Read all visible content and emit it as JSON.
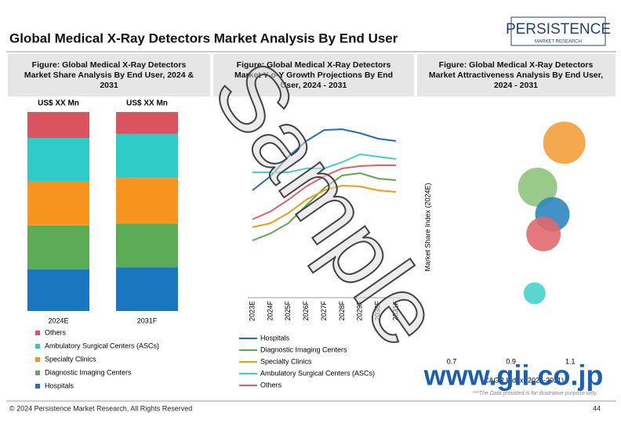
{
  "header": {
    "title": "Global Medical X-Ray Detectors Market Analysis By End User",
    "logo": "PERSISTENCE",
    "logo_sub": "MARKET RESEARCH"
  },
  "footer": {
    "copyright": "© 2024 Persistence Market Research, All Rights Reserved",
    "page": "44"
  },
  "watermark": "Sample",
  "site": "www.gii.co.jp",
  "note": "***The Data provided is for illustrative purpose only.",
  "chart_data": [
    {
      "type": "stacked_bar",
      "title": "Figure: Global Medical X-Ray Detectors Market Share Analysis By End User, 2024 & 2031",
      "categories": [
        "2024E",
        "2031F"
      ],
      "bar_labels": [
        "US$ XX Mn",
        "US$ XX Mn"
      ],
      "series": [
        {
          "name": "Hospitals",
          "color": "#1a77bf",
          "values": [
            21,
            22
          ]
        },
        {
          "name": "Diagnostic Imaging Centers",
          "color": "#5cab56",
          "values": [
            22,
            22
          ]
        },
        {
          "name": "Specialty Clinics",
          "color": "#f7941d",
          "values": [
            22,
            23
          ]
        },
        {
          "name": "Ambulatory Surgical Centers (ASCs)",
          "color": "#2ecbc8",
          "values": [
            22,
            22
          ]
        },
        {
          "name": "Others",
          "color": "#d9545e",
          "values": [
            13,
            11
          ]
        }
      ]
    },
    {
      "type": "line",
      "title": "Figure: Global Medical X-Ray Detectors Market Y-o-Y Growth Projections By End User, 2024 - 2031",
      "categories": [
        "2023E",
        "2024F",
        "2025F",
        "2026F",
        "2027F",
        "2028F",
        "2029F",
        "2030F",
        "2031F"
      ],
      "ylim": [
        0,
        230
      ],
      "series": [
        {
          "name": "Hospitals",
          "color": "#1f6fb2",
          "values": [
            137,
            155,
            180,
            200,
            214,
            215,
            210,
            203,
            200
          ]
        },
        {
          "name": "Diagnostic Imaging Centers",
          "color": "#5fa84f",
          "values": [
            73,
            82,
            95,
            118,
            140,
            156,
            159,
            152,
            150
          ]
        },
        {
          "name": "Specialty Clinics",
          "color": "#f39c12",
          "values": [
            90,
            95,
            108,
            125,
            137,
            143,
            142,
            137,
            135
          ]
        },
        {
          "name": "Ambulatory Surgical Centers (ASCs)",
          "color": "#40d0d0",
          "values": [
            160,
            160,
            160,
            165,
            165,
            173,
            183,
            180,
            177
          ]
        },
        {
          "name": "Others",
          "color": "#e0606a",
          "values": [
            100,
            110,
            125,
            142,
            155,
            165,
            168,
            169,
            169
          ]
        }
      ]
    },
    {
      "type": "bubble",
      "title": "Figure: Global Medical X-Ray Detectors Market Attractiveness Analysis By End User, 2024 - 2031",
      "x_label": "CAGR Index (2024-2031)",
      "y_label": "Market Share Index (2024E)",
      "xlim": [
        0.7,
        1.2
      ],
      "xticks": [
        0.7,
        0.9,
        1.1
      ],
      "ylim": [
        0,
        100
      ],
      "x": [
        1.08,
        0.99,
        1.04,
        1.01,
        0.98
      ],
      "values": [
        85,
        67,
        56,
        48,
        24
      ],
      "sizes": [
        27,
        25,
        22,
        22,
        14
      ],
      "colors": [
        "#f4a03c",
        "#8fc47d",
        "#2e86c1",
        "#e06a6e",
        "#48d1cc"
      ]
    }
  ]
}
